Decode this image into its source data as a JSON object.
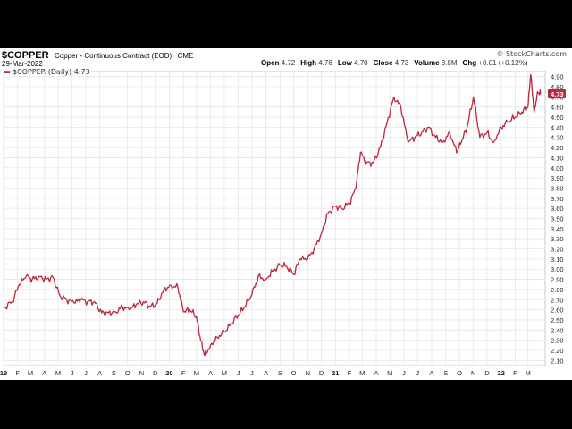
{
  "header": {
    "symbol": "$COPPER",
    "description": "Copper - Continuous Contract (EOD)",
    "exchange": "CME",
    "date": "29-Mar-2022",
    "brand": "© StockCharts.com",
    "ohlc": [
      {
        "label": "Open",
        "value": "4.72"
      },
      {
        "label": "High",
        "value": "4.76"
      },
      {
        "label": "Low",
        "value": "4.70"
      },
      {
        "label": "Close",
        "value": "4.73"
      },
      {
        "label": "Volume",
        "value": "3.8M"
      },
      {
        "label": "Chg",
        "value": "+0.01 (+0.12%)"
      }
    ],
    "legend": "$COPPER (Daily) 4.73"
  },
  "colors": {
    "line": "#b9283c",
    "grid": "#e6e6e6",
    "last_box": "#b9283c"
  },
  "chart_data": {
    "type": "line",
    "title": "$COPPER",
    "ylim": [
      2.05,
      4.95
    ],
    "y_ticks": [
      2.1,
      2.2,
      2.3,
      2.4,
      2.5,
      2.6,
      2.7,
      2.8,
      2.9,
      3.0,
      3.1,
      3.2,
      3.3,
      3.4,
      3.5,
      3.6,
      3.7,
      3.8,
      3.9,
      4.0,
      4.1,
      4.2,
      4.3,
      4.4,
      4.5,
      4.6,
      4.7,
      4.8,
      4.9
    ],
    "y_tick_labels": [
      "2.10",
      "2.20",
      "2.30",
      "2.40",
      "2.50",
      "2.60",
      "2.70",
      "2.80",
      "2.90",
      "3.00",
      "3.10",
      "3.20",
      "3.30",
      "3.40",
      "3.50",
      "3.60",
      "3.70",
      "3.80",
      "3.90",
      "4.00",
      "4.10",
      "4.20",
      "4.30",
      "4.40",
      "4.50",
      "4.60",
      "4.70",
      "4.80",
      "4.90"
    ],
    "x_labels": [
      "19",
      "F",
      "M",
      "A",
      "M",
      "J",
      "J",
      "A",
      "S",
      "O",
      "N",
      "D",
      "20",
      "F",
      "M",
      "A",
      "M",
      "J",
      "J",
      "A",
      "S",
      "O",
      "N",
      "D",
      "21",
      "F",
      "M",
      "A",
      "M",
      "J",
      "J",
      "A",
      "S",
      "O",
      "N",
      "D",
      "22",
      "F",
      "M"
    ],
    "x_bold": [
      "19",
      "20",
      "21",
      "22"
    ],
    "last_value": "4.73",
    "series": [
      {
        "name": "$COPPER (Daily)",
        "x": [
          "2019-01-02",
          "2019-01-20",
          "2019-02-05",
          "2019-02-20",
          "2019-03-05",
          "2019-03-20",
          "2019-04-05",
          "2019-04-20",
          "2019-05-05",
          "2019-05-20",
          "2019-06-05",
          "2019-06-20",
          "2019-07-05",
          "2019-07-20",
          "2019-08-05",
          "2019-08-20",
          "2019-09-05",
          "2019-09-20",
          "2019-10-05",
          "2019-10-20",
          "2019-11-05",
          "2019-11-20",
          "2019-12-05",
          "2019-12-20",
          "2020-01-05",
          "2020-01-20",
          "2020-02-01",
          "2020-02-15",
          "2020-03-01",
          "2020-03-10",
          "2020-03-19",
          "2020-04-01",
          "2020-04-15",
          "2020-05-01",
          "2020-05-15",
          "2020-06-01",
          "2020-06-15",
          "2020-07-01",
          "2020-07-15",
          "2020-08-01",
          "2020-08-15",
          "2020-09-01",
          "2020-09-15",
          "2020-10-01",
          "2020-10-15",
          "2020-11-01",
          "2020-11-15",
          "2020-12-01",
          "2020-12-15",
          "2021-01-01",
          "2021-01-15",
          "2021-02-01",
          "2021-02-15",
          "2021-02-25",
          "2021-03-10",
          "2021-03-25",
          "2021-04-10",
          "2021-04-25",
          "2021-05-10",
          "2021-05-25",
          "2021-06-10",
          "2021-06-25",
          "2021-07-10",
          "2021-07-25",
          "2021-08-10",
          "2021-08-25",
          "2021-09-10",
          "2021-09-25",
          "2021-10-05",
          "2021-10-18",
          "2021-11-01",
          "2021-11-15",
          "2021-12-01",
          "2021-12-15",
          "2022-01-01",
          "2022-01-15",
          "2022-02-01",
          "2022-02-15",
          "2022-03-01",
          "2022-03-07",
          "2022-03-15",
          "2022-03-22",
          "2022-03-29"
        ],
        "values": [
          2.62,
          2.68,
          2.85,
          2.93,
          2.9,
          2.93,
          2.9,
          2.92,
          2.74,
          2.7,
          2.67,
          2.7,
          2.68,
          2.68,
          2.57,
          2.57,
          2.58,
          2.63,
          2.6,
          2.65,
          2.68,
          2.63,
          2.66,
          2.8,
          2.84,
          2.82,
          2.58,
          2.6,
          2.53,
          2.3,
          2.15,
          2.25,
          2.33,
          2.38,
          2.45,
          2.55,
          2.63,
          2.75,
          2.93,
          2.9,
          2.98,
          3.04,
          3.03,
          2.95,
          3.1,
          3.1,
          3.2,
          3.35,
          3.55,
          3.62,
          3.6,
          3.65,
          3.8,
          4.15,
          4.05,
          4.05,
          4.2,
          4.45,
          4.7,
          4.6,
          4.25,
          4.3,
          4.35,
          4.4,
          4.3,
          4.25,
          4.35,
          4.15,
          4.25,
          4.4,
          4.7,
          4.3,
          4.35,
          4.25,
          4.4,
          4.45,
          4.5,
          4.55,
          4.6,
          4.92,
          4.55,
          4.75,
          4.73
        ]
      }
    ]
  }
}
